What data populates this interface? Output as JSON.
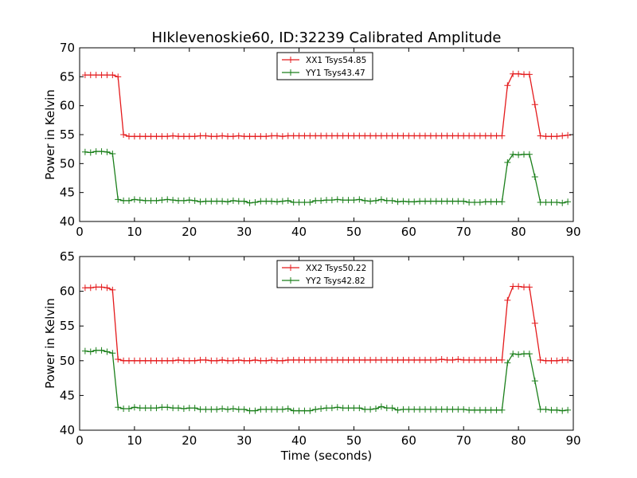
{
  "title": "HIklevenoskie60, ID:32239 Calibrated Amplitude",
  "colors": {
    "red": "#e41a1c",
    "green": "#1a7f1a",
    "axis": "#000000"
  },
  "chart_data": [
    {
      "type": "line",
      "ylabel": "Power in Kelvin",
      "xlabel": "",
      "xlim": [
        0,
        90
      ],
      "ylim": [
        40,
        70
      ],
      "xticks": [
        0,
        10,
        20,
        30,
        40,
        50,
        60,
        70,
        80,
        90
      ],
      "yticks": [
        40,
        45,
        50,
        55,
        60,
        65,
        70
      ],
      "legend_position": "top-center",
      "series": [
        {
          "name": "XX1 Tsys54.85",
          "color": "#e41a1c",
          "x": [
            1,
            2,
            3,
            4,
            5,
            6,
            7,
            8,
            9,
            10,
            11,
            12,
            13,
            14,
            15,
            16,
            17,
            18,
            19,
            20,
            21,
            22,
            23,
            24,
            25,
            26,
            27,
            28,
            29,
            30,
            31,
            32,
            33,
            34,
            35,
            36,
            37,
            38,
            39,
            40,
            41,
            42,
            43,
            44,
            45,
            46,
            47,
            48,
            49,
            50,
            51,
            52,
            53,
            54,
            55,
            56,
            57,
            58,
            59,
            60,
            61,
            62,
            63,
            64,
            65,
            66,
            67,
            68,
            69,
            70,
            71,
            72,
            73,
            74,
            75,
            76,
            77,
            78,
            79,
            80,
            81,
            82,
            83,
            84,
            85,
            86,
            87,
            88,
            89
          ],
          "y": [
            65.3,
            65.3,
            65.3,
            65.3,
            65.3,
            65.3,
            65.0,
            55.0,
            54.7,
            54.7,
            54.7,
            54.7,
            54.7,
            54.7,
            54.7,
            54.7,
            54.8,
            54.7,
            54.7,
            54.7,
            54.7,
            54.8,
            54.8,
            54.7,
            54.7,
            54.8,
            54.7,
            54.7,
            54.8,
            54.7,
            54.7,
            54.7,
            54.7,
            54.7,
            54.8,
            54.8,
            54.7,
            54.8,
            54.8,
            54.8,
            54.8,
            54.8,
            54.8,
            54.8,
            54.8,
            54.8,
            54.8,
            54.8,
            54.8,
            54.8,
            54.8,
            54.8,
            54.8,
            54.8,
            54.8,
            54.8,
            54.8,
            54.8,
            54.8,
            54.8,
            54.8,
            54.8,
            54.8,
            54.8,
            54.8,
            54.8,
            54.8,
            54.8,
            54.8,
            54.8,
            54.8,
            54.8,
            54.8,
            54.8,
            54.8,
            54.8,
            54.8,
            63.5,
            65.5,
            65.5,
            65.4,
            65.4,
            60.2,
            54.8,
            54.7,
            54.7,
            54.7,
            54.8,
            54.9
          ]
        },
        {
          "name": "YY1 Tsys43.47",
          "color": "#1a7f1a",
          "x": [
            1,
            2,
            3,
            4,
            5,
            6,
            7,
            8,
            9,
            10,
            11,
            12,
            13,
            14,
            15,
            16,
            17,
            18,
            19,
            20,
            21,
            22,
            23,
            24,
            25,
            26,
            27,
            28,
            29,
            30,
            31,
            32,
            33,
            34,
            35,
            36,
            37,
            38,
            39,
            40,
            41,
            42,
            43,
            44,
            45,
            46,
            47,
            48,
            49,
            50,
            51,
            52,
            53,
            54,
            55,
            56,
            57,
            58,
            59,
            60,
            61,
            62,
            63,
            64,
            65,
            66,
            67,
            68,
            69,
            70,
            71,
            72,
            73,
            74,
            75,
            76,
            77,
            78,
            79,
            80,
            81,
            82,
            83,
            84,
            85,
            86,
            87,
            88,
            89
          ],
          "y": [
            52.0,
            51.9,
            52.1,
            52.1,
            52.0,
            51.7,
            43.8,
            43.6,
            43.6,
            43.8,
            43.7,
            43.6,
            43.6,
            43.6,
            43.7,
            43.8,
            43.7,
            43.6,
            43.6,
            43.7,
            43.6,
            43.4,
            43.5,
            43.5,
            43.5,
            43.5,
            43.4,
            43.6,
            43.5,
            43.5,
            43.2,
            43.3,
            43.5,
            43.5,
            43.5,
            43.4,
            43.5,
            43.6,
            43.3,
            43.3,
            43.3,
            43.3,
            43.6,
            43.6,
            43.7,
            43.7,
            43.8,
            43.7,
            43.7,
            43.7,
            43.8,
            43.6,
            43.5,
            43.6,
            43.8,
            43.6,
            43.6,
            43.4,
            43.5,
            43.4,
            43.4,
            43.5,
            43.5,
            43.5,
            43.5,
            43.5,
            43.5,
            43.5,
            43.5,
            43.5,
            43.3,
            43.3,
            43.3,
            43.4,
            43.4,
            43.4,
            43.4,
            50.2,
            51.6,
            51.5,
            51.6,
            51.6,
            47.7,
            43.3,
            43.3,
            43.3,
            43.3,
            43.2,
            43.4
          ]
        }
      ]
    },
    {
      "type": "line",
      "ylabel": "Power in Kelvin",
      "xlabel": "Time (seconds)",
      "xlim": [
        0,
        90
      ],
      "ylim": [
        40,
        65
      ],
      "xticks": [
        0,
        10,
        20,
        30,
        40,
        50,
        60,
        70,
        80,
        90
      ],
      "yticks": [
        40,
        45,
        50,
        55,
        60,
        65
      ],
      "legend_position": "top-center",
      "series": [
        {
          "name": "XX2 Tsys50.22",
          "color": "#e41a1c",
          "x": [
            1,
            2,
            3,
            4,
            5,
            6,
            7,
            8,
            9,
            10,
            11,
            12,
            13,
            14,
            15,
            16,
            17,
            18,
            19,
            20,
            21,
            22,
            23,
            24,
            25,
            26,
            27,
            28,
            29,
            30,
            31,
            32,
            33,
            34,
            35,
            36,
            37,
            38,
            39,
            40,
            41,
            42,
            43,
            44,
            45,
            46,
            47,
            48,
            49,
            50,
            51,
            52,
            53,
            54,
            55,
            56,
            57,
            58,
            59,
            60,
            61,
            62,
            63,
            64,
            65,
            66,
            67,
            68,
            69,
            70,
            71,
            72,
            73,
            74,
            75,
            76,
            77,
            78,
            79,
            80,
            81,
            82,
            83,
            84,
            85,
            86,
            87,
            88,
            89
          ],
          "y": [
            60.5,
            60.5,
            60.6,
            60.6,
            60.5,
            60.2,
            50.2,
            50.0,
            50.0,
            50.0,
            50.0,
            50.0,
            50.0,
            50.0,
            50.0,
            50.0,
            50.0,
            50.1,
            50.0,
            50.0,
            50.0,
            50.1,
            50.1,
            50.0,
            50.0,
            50.1,
            50.0,
            50.0,
            50.1,
            50.0,
            50.0,
            50.1,
            50.0,
            50.0,
            50.1,
            50.0,
            50.0,
            50.1,
            50.1,
            50.1,
            50.1,
            50.1,
            50.1,
            50.1,
            50.1,
            50.1,
            50.1,
            50.1,
            50.1,
            50.1,
            50.1,
            50.1,
            50.1,
            50.1,
            50.1,
            50.1,
            50.1,
            50.1,
            50.1,
            50.1,
            50.1,
            50.1,
            50.1,
            50.1,
            50.1,
            50.2,
            50.1,
            50.1,
            50.2,
            50.1,
            50.1,
            50.1,
            50.1,
            50.1,
            50.1,
            50.1,
            50.1,
            58.7,
            60.7,
            60.7,
            60.6,
            60.6,
            55.4,
            50.1,
            50.0,
            50.0,
            50.0,
            50.1,
            50.1
          ]
        },
        {
          "name": "YY2 Tsys42.82",
          "color": "#1a7f1a",
          "x": [
            1,
            2,
            3,
            4,
            5,
            6,
            7,
            8,
            9,
            10,
            11,
            12,
            13,
            14,
            15,
            16,
            17,
            18,
            19,
            20,
            21,
            22,
            23,
            24,
            25,
            26,
            27,
            28,
            29,
            30,
            31,
            32,
            33,
            34,
            35,
            36,
            37,
            38,
            39,
            40,
            41,
            42,
            43,
            44,
            45,
            46,
            47,
            48,
            49,
            50,
            51,
            52,
            53,
            54,
            55,
            56,
            57,
            58,
            59,
            60,
            61,
            62,
            63,
            64,
            65,
            66,
            67,
            68,
            69,
            70,
            71,
            72,
            73,
            74,
            75,
            76,
            77,
            78,
            79,
            80,
            81,
            82,
            83,
            84,
            85,
            86,
            87,
            88,
            89
          ],
          "y": [
            51.4,
            51.3,
            51.5,
            51.5,
            51.3,
            51.1,
            43.3,
            43.1,
            43.1,
            43.3,
            43.2,
            43.2,
            43.2,
            43.2,
            43.3,
            43.3,
            43.2,
            43.2,
            43.1,
            43.2,
            43.2,
            43.0,
            43.0,
            43.0,
            43.0,
            43.1,
            43.0,
            43.1,
            43.0,
            43.0,
            42.8,
            42.8,
            43.0,
            43.0,
            43.0,
            43.0,
            43.0,
            43.1,
            42.8,
            42.8,
            42.8,
            42.8,
            43.0,
            43.1,
            43.2,
            43.2,
            43.3,
            43.2,
            43.2,
            43.2,
            43.2,
            43.0,
            43.0,
            43.1,
            43.4,
            43.2,
            43.2,
            42.9,
            43.0,
            43.0,
            43.0,
            43.0,
            43.0,
            43.0,
            43.0,
            43.0,
            43.0,
            43.0,
            43.0,
            43.0,
            42.9,
            42.9,
            42.9,
            42.9,
            42.9,
            42.9,
            42.9,
            49.7,
            51.0,
            50.9,
            51.0,
            51.0,
            47.1,
            43.0,
            43.0,
            42.9,
            42.9,
            42.8,
            42.9
          ]
        }
      ]
    }
  ]
}
